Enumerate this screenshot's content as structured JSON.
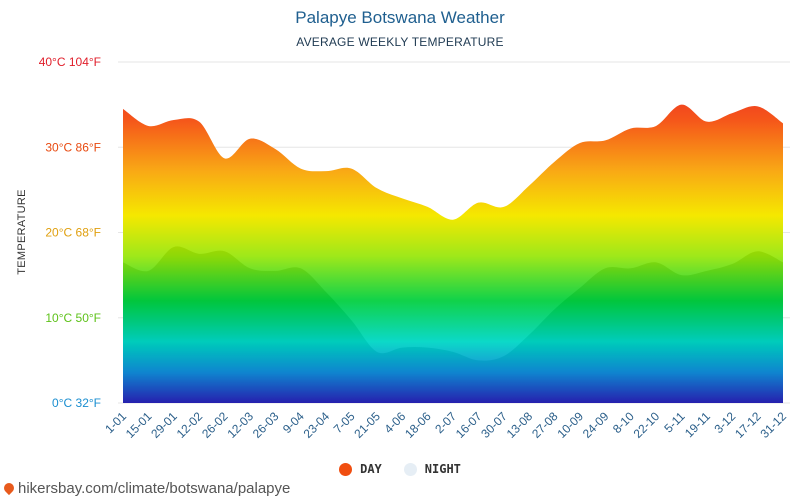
{
  "header": {
    "title": "Palapye Botswana Weather",
    "subtitle": "AVERAGE WEEKLY TEMPERATURE"
  },
  "footer": {
    "source": "hikersbay.com/climate/botswana/palapye",
    "icon": "map-pin-icon"
  },
  "legend": {
    "day_label": "DAY",
    "night_label": "NIGHT",
    "day_color": "#f04e10",
    "night_color": "#e6eef5"
  },
  "chart_data": {
    "type": "area",
    "ylabel": "TEMPERATURE",
    "ylim": [
      0,
      40
    ],
    "yticks": [
      {
        "value": 0,
        "label": "0°C 32°F",
        "color": "#1a8ed0"
      },
      {
        "value": 10,
        "label": "10°C 50°F",
        "color": "#5ec21a"
      },
      {
        "value": 20,
        "label": "20°C 68°F",
        "color": "#e0a010"
      },
      {
        "value": 30,
        "label": "30°C 86°F",
        "color": "#e84a10"
      },
      {
        "value": 40,
        "label": "40°C 104°F",
        "color": "#e01e2a"
      }
    ],
    "x_tick_labels": [
      "1-01",
      "15-01",
      "29-01",
      "12-02",
      "26-02",
      "12-03",
      "26-03",
      "9-04",
      "23-04",
      "7-05",
      "21-05",
      "4-06",
      "18-06",
      "2-07",
      "16-07",
      "30-07",
      "13-08",
      "27-08",
      "10-09",
      "24-09",
      "8-10",
      "22-10",
      "5-11",
      "19-11",
      "3-12",
      "17-12",
      "31-12"
    ],
    "grid": true,
    "legend_position": "bottom",
    "series": [
      {
        "name": "DAY",
        "values": [
          34.5,
          32.5,
          33.2,
          33.0,
          28.7,
          31.0,
          29.8,
          27.5,
          27.2,
          27.5,
          25.2,
          24.0,
          23.0,
          21.5,
          23.5,
          23.0,
          25.5,
          28.3,
          30.5,
          30.8,
          32.2,
          32.5,
          35.0,
          33.0,
          34.0,
          34.8,
          32.8
        ]
      },
      {
        "name": "NIGHT",
        "values": [
          16.5,
          15.5,
          18.3,
          17.5,
          17.8,
          15.8,
          15.5,
          15.8,
          13.0,
          9.7,
          6.0,
          6.5,
          6.5,
          6.0,
          5.0,
          5.5,
          8.0,
          11.0,
          13.5,
          15.8,
          15.8,
          16.5,
          15.0,
          15.5,
          16.3,
          17.8,
          16.5
        ]
      }
    ]
  }
}
